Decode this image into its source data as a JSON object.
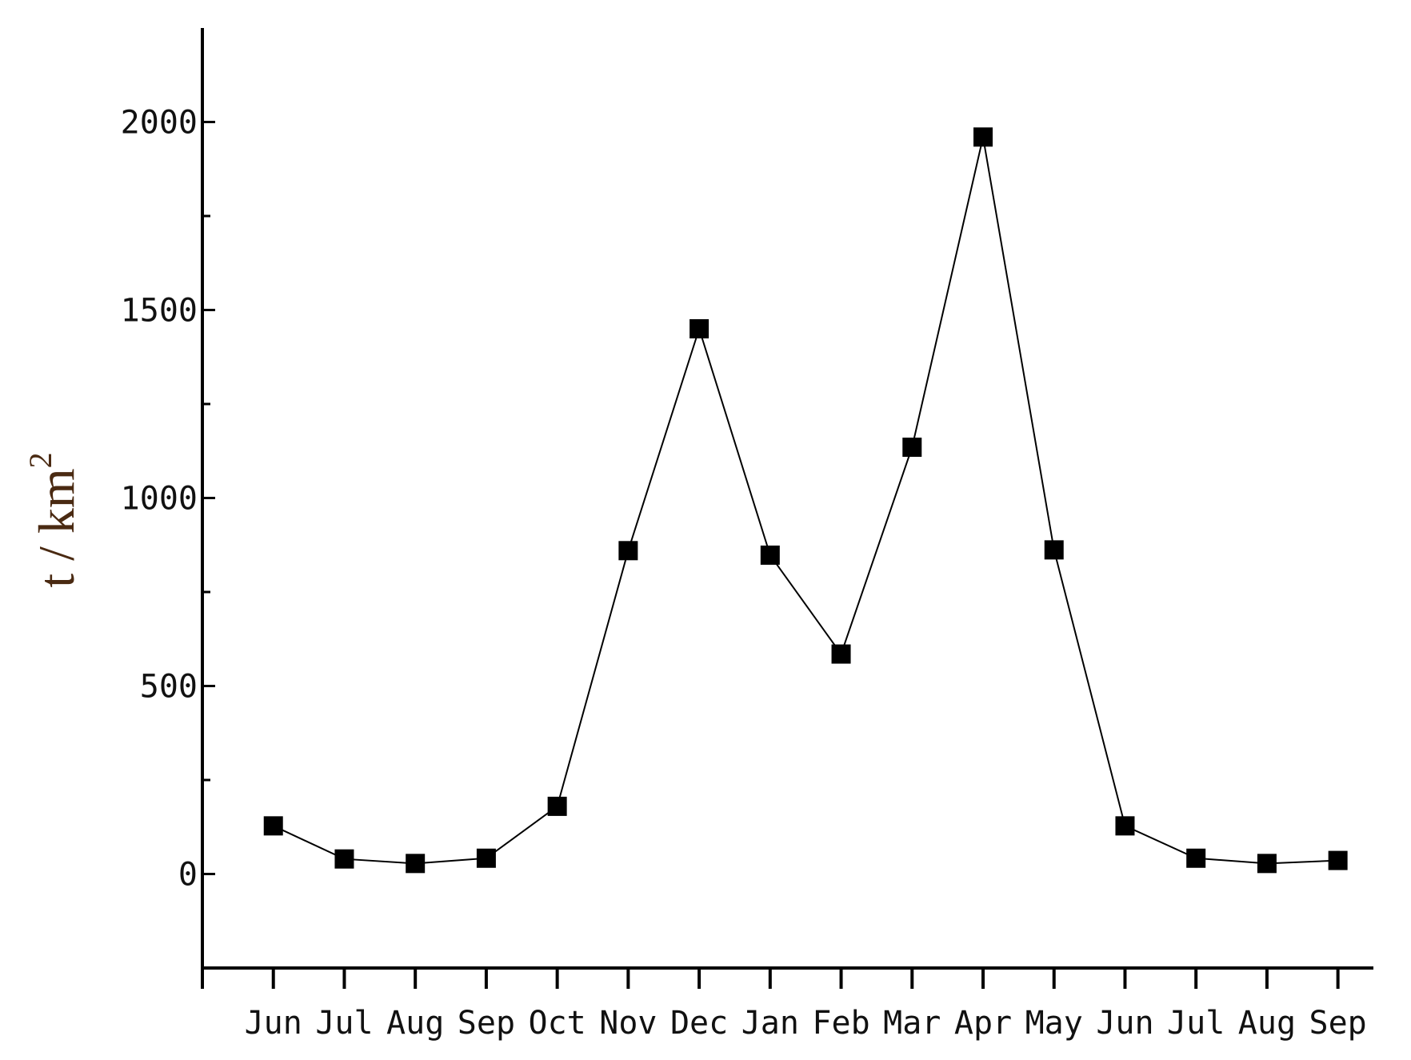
{
  "chart_data": {
    "type": "line",
    "title": "",
    "xlabel": "",
    "ylabel": "t / km",
    "ylabel_superscript": "2",
    "categories": [
      "Jun",
      "Jul",
      "Aug",
      "Sep",
      "Oct",
      "Nov",
      "Dec",
      "Jan",
      "Feb",
      "Mar",
      "Apr",
      "May",
      "Jun",
      "Jul",
      "Aug",
      "Sep"
    ],
    "series": [
      {
        "name": "",
        "marker": "square",
        "values": [
          128,
          40,
          28,
          42,
          180,
          860,
          1450,
          848,
          585,
          1135,
          1960,
          862,
          128,
          42,
          28,
          36
        ]
      }
    ],
    "ylim": [
      -250,
      2250
    ],
    "yticks": [
      0,
      500,
      1000,
      1500,
      2000
    ],
    "ytick_labels": [
      "0",
      "500",
      "1000",
      "1500",
      "2000"
    ],
    "grid": false,
    "legend": "none",
    "colors": {
      "line": "#000000",
      "marker": "#000000",
      "axis": "#000000",
      "ylabel": "#4a2a12"
    }
  }
}
